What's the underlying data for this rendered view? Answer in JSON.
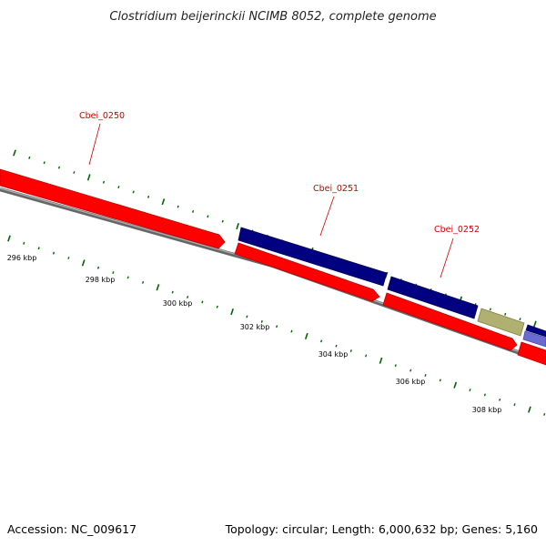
{
  "title": "Clostridium beijerinckii NCIMB 8052, complete genome",
  "footer": {
    "accession": "Accession: NC_009617",
    "summary": "Topology: circular; Length: 6,000,632 bp; Genes: 5,160"
  },
  "scale_labels": [
    "296 kbp",
    "298 kbp",
    "300 kbp",
    "302 kbp",
    "304 kbp",
    "306 kbp",
    "308 kbp"
  ],
  "gene_labels": [
    "Cbei_0250",
    "Cbei_0251",
    "Cbei_0252"
  ],
  "colors": {
    "cds": "#ff0000",
    "gene_forward": "#000080",
    "gene_olive": "#b0b070",
    "gene_lavender": "#6a6ad0",
    "backbone": "#808080",
    "tick": "#006400",
    "label": "#cc0000"
  }
}
